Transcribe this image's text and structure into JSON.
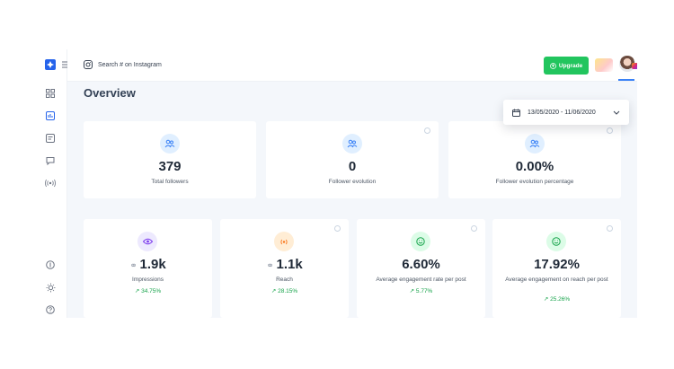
{
  "header": {
    "search_placeholder": "Search # on Instagram",
    "upgrade_label": "Upgrade"
  },
  "page": {
    "title": "Overview",
    "date_range": "13/05/2020 - 11/06/2020"
  },
  "top_stats": [
    {
      "value": "379",
      "label": "Total followers",
      "icon": "users-icon"
    },
    {
      "value": "0",
      "label": "Follower evolution",
      "icon": "users-icon"
    },
    {
      "value": "0.00%",
      "label": "Follower evolution percentage",
      "icon": "users-icon"
    }
  ],
  "bottom_stats": [
    {
      "value": "1.9k",
      "label": "Impressions",
      "trend": "34.75%",
      "icon": "eye-icon"
    },
    {
      "value": "1.1k",
      "label": "Reach",
      "trend": "28.15%",
      "icon": "broadcast-icon"
    },
    {
      "value": "6.60%",
      "label": "Average engagement rate per post",
      "trend": "5.77%",
      "icon": "smile-icon"
    },
    {
      "value": "17.92%",
      "label": "Average engagement on reach per post",
      "trend": "25.26%",
      "icon": "smile-icon"
    }
  ],
  "colors": {
    "accent_blue": "#3b82f6",
    "green": "#22c55e",
    "purple_bg": "#ede9fe",
    "orange_bg": "#ffedd5",
    "green_bg": "#dcfce7",
    "blue_bg": "#e0efff"
  }
}
